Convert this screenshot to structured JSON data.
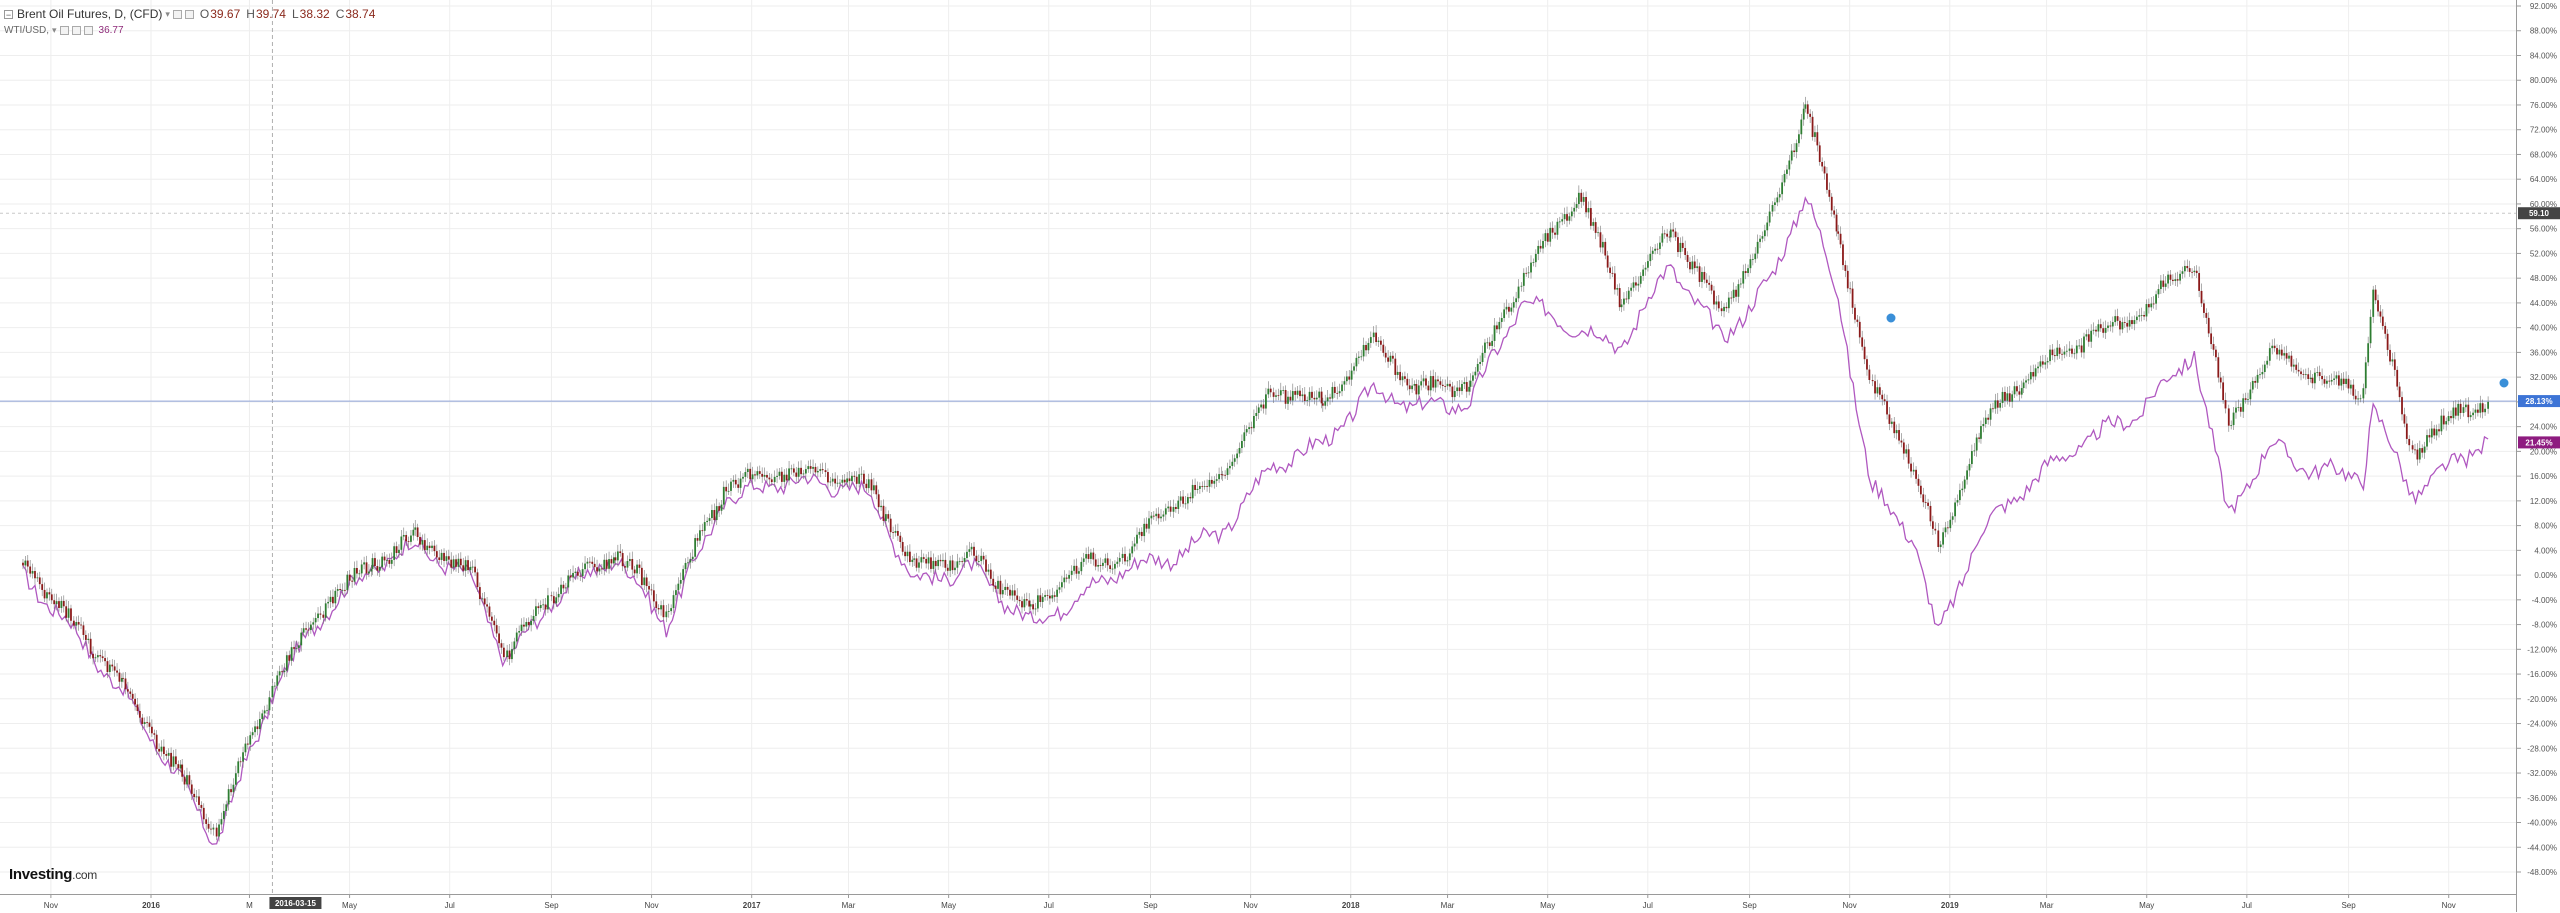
{
  "legend": {
    "main_title": "Brent Oil Futures, D, (CFD)",
    "ohlc": {
      "o_label": "O",
      "o": "39.67",
      "h_label": "H",
      "h": "39.74",
      "l_label": "L",
      "l": "38.32",
      "c_label": "C",
      "c": "38.74"
    },
    "compare_title": "WTI/USD,",
    "compare_value": "36.77"
  },
  "logo": {
    "main": "Investing",
    "suffix": ".com"
  },
  "crosshair_date": "2016-03-15",
  "badges": {
    "top": "59.10",
    "brent": "28.13%",
    "wti": "21.45%"
  },
  "colors": {
    "up": "#2e7d32",
    "down": "#8b1a1a",
    "wti": "#b058c0",
    "hline": "#8fa3d8",
    "brent_badge": "#3d74d6",
    "wti_badge": "#8e1c80",
    "dark_badge": "#444444"
  },
  "chart_data": {
    "type": "line",
    "y_unit": "%",
    "ylim": [
      -48,
      92
    ],
    "y_ticks": [
      "92.00%",
      "88.00%",
      "84.00%",
      "80.00%",
      "76.00%",
      "72.00%",
      "68.00%",
      "64.00%",
      "60.00%",
      "56.00%",
      "52.00%",
      "48.00%",
      "44.00%",
      "40.00%",
      "36.00%",
      "32.00%",
      "28.00%",
      "24.00%",
      "20.00%",
      "16.00%",
      "12.00%",
      "8.00%",
      "4.00%",
      "0.00%",
      "-4.00%",
      "-8.00%",
      "-12.00%",
      "-16.00%",
      "-20.00%",
      "-24.00%",
      "-28.00%",
      "-32.00%",
      "-36.00%",
      "-40.00%",
      "-44.00%",
      "-48.00%"
    ],
    "x_ticks": [
      "Nov",
      "2016",
      "M",
      "May",
      "Jul",
      "Sep",
      "Nov",
      "2017",
      "Mar",
      "May",
      "Jul",
      "Sep",
      "Nov",
      "2018",
      "Mar",
      "May",
      "Jul",
      "Sep",
      "Nov",
      "2019",
      "Mar",
      "May",
      "Jul",
      "Sep",
      "Nov"
    ],
    "grid": true,
    "series": [
      {
        "name": "Brent Oil Futures, D, (CFD)",
        "style": "candles",
        "x": [
          "2015-10-15",
          "2015-11-15",
          "2015-12-15",
          "2016-01-20",
          "2016-02-10",
          "2016-03-15",
          "2016-04-15",
          "2016-05-15",
          "2016-06-10",
          "2016-07-15",
          "2016-08-05",
          "2016-09-01",
          "2016-10-10",
          "2016-11-10",
          "2016-12-15",
          "2017-01-15",
          "2017-02-15",
          "2017-03-15",
          "2017-04-10",
          "2017-05-15",
          "2017-06-20",
          "2017-07-15",
          "2017-08-15",
          "2017-09-15",
          "2017-10-15",
          "2017-11-15",
          "2017-12-15",
          "2018-01-15",
          "2018-02-10",
          "2018-03-15",
          "2018-04-15",
          "2018-05-20",
          "2018-06-15",
          "2018-07-15",
          "2018-08-15",
          "2018-09-15",
          "2018-10-05",
          "2018-10-25",
          "2018-11-15",
          "2018-12-10",
          "2018-12-25",
          "2019-01-20",
          "2019-02-15",
          "2019-03-15",
          "2019-04-25",
          "2019-05-30",
          "2019-06-20",
          "2019-07-15",
          "2019-08-10",
          "2019-09-10",
          "2019-09-16",
          "2019-10-10",
          "2019-11-10",
          "2019-11-25"
        ],
        "values": [
          2,
          -8,
          -18,
          -33,
          -41,
          -18,
          -5,
          2,
          6,
          0,
          -13,
          -3,
          4,
          -6,
          14,
          17,
          16,
          14,
          1,
          3,
          -6,
          1,
          3,
          12,
          16,
          30,
          28,
          38,
          30,
          31,
          48,
          62,
          44,
          56,
          42,
          58,
          76,
          55,
          30,
          18,
          4,
          24,
          32,
          37,
          42,
          51,
          24,
          36,
          32,
          30,
          46,
          20,
          27,
          28
        ]
      },
      {
        "name": "WTI/USD",
        "style": "line",
        "x": [
          "2015-10-15",
          "2015-11-15",
          "2015-12-15",
          "2016-01-20",
          "2016-02-10",
          "2016-03-15",
          "2016-04-15",
          "2016-05-15",
          "2016-06-10",
          "2016-07-15",
          "2016-08-05",
          "2016-09-01",
          "2016-10-10",
          "2016-11-10",
          "2016-12-15",
          "2017-01-15",
          "2017-02-15",
          "2017-03-15",
          "2017-04-10",
          "2017-05-15",
          "2017-06-20",
          "2017-07-15",
          "2017-08-15",
          "2017-09-15",
          "2017-10-15",
          "2017-11-15",
          "2017-12-15",
          "2018-01-15",
          "2018-02-10",
          "2018-03-15",
          "2018-04-15",
          "2018-05-20",
          "2018-06-15",
          "2018-07-15",
          "2018-08-15",
          "2018-09-15",
          "2018-10-05",
          "2018-10-25",
          "2018-11-15",
          "2018-12-10",
          "2018-12-25",
          "2019-01-20",
          "2019-02-15",
          "2019-03-15",
          "2019-04-25",
          "2019-05-30",
          "2019-06-20",
          "2019-07-15",
          "2019-08-10",
          "2019-09-10",
          "2019-09-16",
          "2019-10-10",
          "2019-11-10",
          "2019-11-25"
        ],
        "values": [
          0,
          -9,
          -19,
          -34,
          -43,
          -19,
          -6,
          1,
          5,
          -1,
          -14,
          -4,
          3,
          -8,
          12,
          15,
          15,
          13,
          -1,
          1,
          -8,
          -4,
          1,
          3,
          7,
          18,
          21,
          30,
          27,
          28,
          44,
          40,
          37,
          50,
          38,
          48,
          62,
          45,
          14,
          6,
          -10,
          7,
          14,
          20,
          26,
          36,
          10,
          21,
          17,
          16,
          27,
          13,
          19,
          22
        ]
      }
    ]
  }
}
